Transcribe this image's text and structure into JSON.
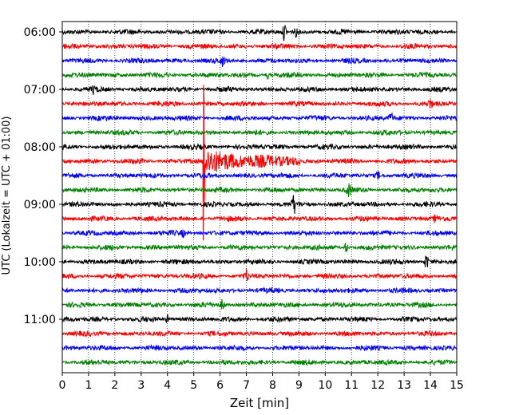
{
  "chart_data": {
    "type": "line",
    "title": "",
    "xlabel": "Zeit  [min]",
    "ylabel": "UTC (Lokalzeit = UTC + 01:00)",
    "xlim": [
      0,
      15
    ],
    "x_ticks": [
      "0",
      "1",
      "2",
      "3",
      "4",
      "5",
      "6",
      "7",
      "8",
      "9",
      "10",
      "11",
      "12",
      "13",
      "14",
      "15"
    ],
    "y_tick_labels": [
      "06:00",
      "07:00",
      "08:00",
      "09:00",
      "10:00",
      "11:00"
    ],
    "row_interval_min": 15,
    "start_time": "06:00",
    "grid": "vertical dotted",
    "line_colors": [
      "#000000",
      "#ff0000",
      "#0000ff",
      "#008000"
    ],
    "traces": [
      {
        "time": "06:00",
        "events": [
          {
            "t": 8.45,
            "amp": 0.5
          },
          {
            "t": 8.9,
            "amp": 0.25
          }
        ]
      },
      {
        "time": "06:15",
        "events": []
      },
      {
        "time": "06:30",
        "events": [
          {
            "t": 6.1,
            "amp": 0.25
          }
        ]
      },
      {
        "time": "06:45",
        "events": [
          {
            "t": 7.8,
            "amp": 0.2
          }
        ]
      },
      {
        "time": "07:00",
        "events": [
          {
            "t": 1.2,
            "amp": 0.2
          }
        ]
      },
      {
        "time": "07:15",
        "events": [
          {
            "t": 14.0,
            "amp": 0.3
          }
        ]
      },
      {
        "time": "07:30",
        "events": [
          {
            "t": 12.5,
            "amp": 0.3
          }
        ]
      },
      {
        "time": "07:45",
        "events": []
      },
      {
        "time": "08:00",
        "events": []
      },
      {
        "time": "08:15",
        "events": [
          {
            "t": 5.35,
            "amp": 3.2,
            "coda_min": 3.7
          }
        ]
      },
      {
        "time": "08:30",
        "events": [
          {
            "t": 12.0,
            "amp": 0.2
          }
        ]
      },
      {
        "time": "08:45",
        "events": [
          {
            "t": 10.9,
            "amp": 0.4
          }
        ]
      },
      {
        "time": "09:00",
        "events": [
          {
            "t": 8.8,
            "amp": 0.55
          }
        ]
      },
      {
        "time": "09:15",
        "events": [
          {
            "t": 14.2,
            "amp": 0.25
          }
        ]
      },
      {
        "time": "09:30",
        "events": [
          {
            "t": 4.6,
            "amp": 0.2
          }
        ]
      },
      {
        "time": "09:45",
        "events": [
          {
            "t": 10.8,
            "amp": 0.3
          }
        ]
      },
      {
        "time": "10:00",
        "events": [
          {
            "t": 13.85,
            "amp": 0.5
          }
        ]
      },
      {
        "time": "10:15",
        "events": [
          {
            "t": 7.0,
            "amp": 0.35
          }
        ]
      },
      {
        "time": "10:30",
        "events": []
      },
      {
        "time": "10:45",
        "events": [
          {
            "t": 6.1,
            "amp": 0.3
          }
        ]
      },
      {
        "time": "11:00",
        "events": [
          {
            "t": 4.0,
            "amp": 0.2
          }
        ]
      },
      {
        "time": "11:15",
        "events": []
      },
      {
        "time": "11:30",
        "events": []
      },
      {
        "time": "11:45",
        "events": []
      }
    ]
  }
}
